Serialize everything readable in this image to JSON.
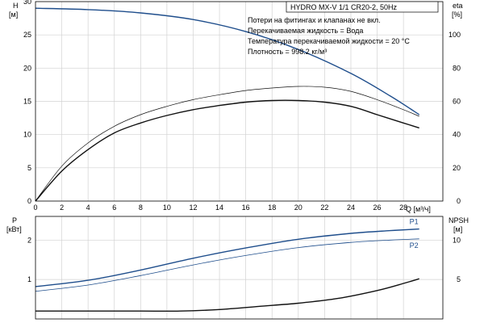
{
  "header": {
    "title": "HYDRO MX-V 1/1 CR20-2, 50Hz",
    "notes": [
      "Потери на фитингах и клапанах не вкл.",
      "Перекачиваемая жидкость = Вода",
      "Температура перекачиваемой жидкости = 20 °C",
      "Плотность = 998.2 кг/м³"
    ]
  },
  "chart_data": [
    {
      "type": "line",
      "xlabel": "Q [м³/ч]",
      "ylabel": "H\n[м]",
      "y2label": "eta\n[%]",
      "xlim": [
        0,
        31
      ],
      "ylim": [
        0,
        30
      ],
      "y2lim": [
        0,
        120
      ],
      "xticks": [
        0,
        2,
        4,
        6,
        8,
        10,
        12,
        14,
        16,
        18,
        20,
        22,
        24,
        26,
        28
      ],
      "yticks": [
        0,
        5,
        10,
        15,
        20,
        25,
        30
      ],
      "y2ticks": [
        0,
        20,
        40,
        60,
        80,
        100
      ],
      "grid": true,
      "series": [
        {
          "color": "#1f4e8c",
          "axis": "left",
          "width": 1.4,
          "x": [
            0,
            4,
            8,
            12,
            16,
            20,
            24,
            27,
            29.2
          ],
          "y": [
            29.0,
            28.8,
            28.3,
            27.3,
            25.5,
            22.8,
            19.2,
            15.8,
            13.0
          ]
        },
        {
          "color": "#111111",
          "axis": "right",
          "width": 0.7,
          "x": [
            0,
            2,
            4,
            6,
            8,
            10,
            12,
            14,
            16,
            18,
            20,
            22,
            24,
            26,
            28,
            29.2
          ],
          "y": [
            0,
            21,
            35,
            45,
            52,
            57,
            61,
            64,
            66.5,
            68,
            69,
            68.5,
            66,
            61,
            55,
            51
          ]
        },
        {
          "color": "#111111",
          "axis": "right",
          "width": 1.4,
          "x": [
            0,
            2,
            4,
            6,
            8,
            10,
            12,
            14,
            16,
            18,
            20,
            22,
            24,
            26,
            28,
            29.2
          ],
          "y": [
            0,
            18,
            31,
            41,
            47,
            51.5,
            55,
            57.5,
            59.5,
            60.5,
            60.5,
            59.5,
            57,
            52,
            47,
            44
          ]
        }
      ]
    },
    {
      "type": "line",
      "ylabel": "P\n[кВт]",
      "y2label": "NPSH\n[м]",
      "xlim": [
        0,
        31
      ],
      "ylim": [
        0,
        2.6
      ],
      "y2lim": [
        0,
        13
      ],
      "yticks": [
        1,
        2
      ],
      "y2ticks": [
        5,
        10
      ],
      "grid": true,
      "series": [
        {
          "name": "P1",
          "color": "#1f4e8c",
          "axis": "left",
          "width": 1.4,
          "x": [
            0,
            4,
            8,
            12,
            16,
            20,
            24,
            27,
            29.2
          ],
          "y": [
            0.82,
            0.98,
            1.24,
            1.54,
            1.8,
            2.02,
            2.17,
            2.24,
            2.28
          ]
        },
        {
          "name": "P2",
          "color": "#1f4e8c",
          "axis": "left",
          "width": 0.8,
          "x": [
            0,
            4,
            8,
            12,
            16,
            20,
            24,
            27,
            29.2
          ],
          "y": [
            0.7,
            0.86,
            1.1,
            1.37,
            1.61,
            1.81,
            1.94,
            2.0,
            2.03
          ]
        },
        {
          "color": "#111111",
          "axis": "right",
          "width": 1.4,
          "x": [
            0,
            4,
            8,
            11,
            14,
            17,
            20,
            23,
            26,
            28,
            29.2
          ],
          "y": [
            1.0,
            1.0,
            1.0,
            1.0,
            1.2,
            1.6,
            2.0,
            2.6,
            3.6,
            4.5,
            5.1
          ]
        }
      ]
    }
  ]
}
